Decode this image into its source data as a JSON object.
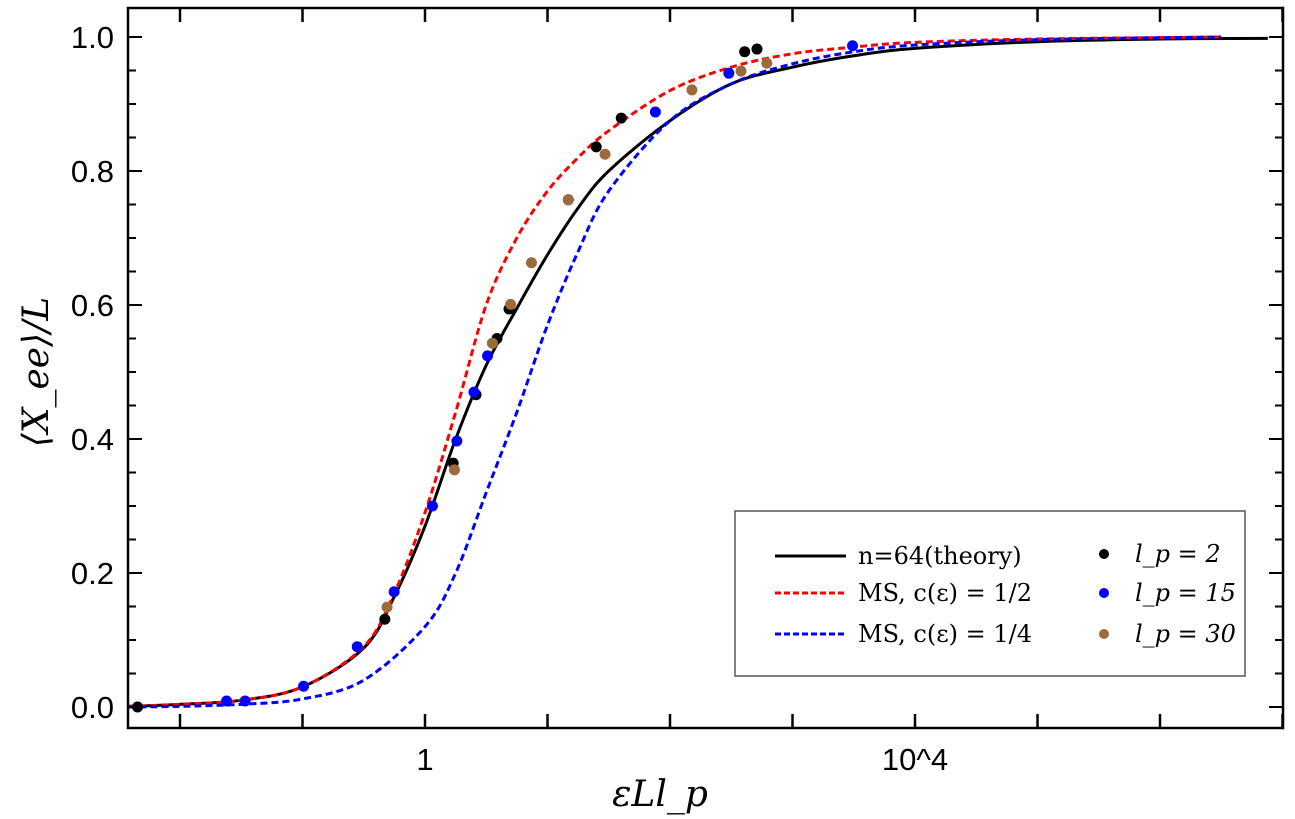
{
  "chart_data": {
    "type": "line",
    "xscale": "log",
    "xlabel": "εLl_p",
    "ylabel": "⟨X_ee⟩/L",
    "xlim": [
      0.0038,
      10000000
    ],
    "ylim": [
      0,
      1.05
    ],
    "x_ticks": [
      {
        "value": 1,
        "label": "1"
      },
      {
        "value": 10000,
        "label": "10^4"
      }
    ],
    "y_ticks": [
      {
        "value": 0,
        "label": "0.0"
      },
      {
        "value": 0.2,
        "label": "0.2"
      },
      {
        "value": 0.4,
        "label": "0.4"
      },
      {
        "value": 0.6,
        "label": "0.6"
      },
      {
        "value": 0.8,
        "label": "0.8"
      },
      {
        "value": 1.0,
        "label": "1.0"
      }
    ],
    "grid": false,
    "legend_position": "bottom-right",
    "lines": [
      {
        "name": "n=64(theory)",
        "color": "#000000",
        "style": "solid",
        "x": [
          0.0038,
          0.01,
          0.0316,
          0.1,
          0.316,
          0.562,
          1,
          1.78,
          3.16,
          5.62,
          10,
          17.8,
          31.6,
          100,
          316,
          1000,
          3162,
          10000,
          100000,
          1000000,
          7600000
        ],
        "y": [
          0.001,
          0.004,
          0.01,
          0.03,
          0.088,
          0.165,
          0.27,
          0.4,
          0.51,
          0.595,
          0.675,
          0.745,
          0.8,
          0.875,
          0.93,
          0.955,
          0.972,
          0.983,
          0.993,
          0.997,
          0.998
        ]
      },
      {
        "name": "MS, c(ε) = 1/2",
        "color": "#ff0000",
        "style": "dashed",
        "x": [
          0.0038,
          0.01,
          0.0316,
          0.1,
          0.316,
          0.562,
          1,
          1.78,
          3.16,
          5.62,
          10,
          17.8,
          31.6,
          100,
          316,
          1000,
          3162,
          10000,
          100000,
          3160000
        ],
        "y": [
          0.001,
          0.004,
          0.01,
          0.03,
          0.09,
          0.17,
          0.29,
          0.44,
          0.6,
          0.7,
          0.77,
          0.82,
          0.86,
          0.92,
          0.955,
          0.975,
          0.985,
          0.992,
          0.997,
          1.0
        ]
      },
      {
        "name": "MS, c(ε) = 1/4",
        "color": "#0000ff",
        "style": "dashed",
        "x": [
          0.0038,
          0.01,
          0.0316,
          0.1,
          0.316,
          1,
          1.78,
          3.16,
          5.62,
          10,
          17.8,
          31.6,
          100,
          316,
          1000,
          3162,
          10000,
          100000,
          3160000
        ],
        "y": [
          0.0,
          0.001,
          0.004,
          0.012,
          0.04,
          0.12,
          0.2,
          0.32,
          0.44,
          0.57,
          0.68,
          0.77,
          0.875,
          0.93,
          0.96,
          0.978,
          0.988,
          0.996,
          1.0
        ]
      }
    ],
    "scatter": [
      {
        "name": "l_p = 2",
        "color": "#000000",
        "x": [
          0.0045,
          0.47,
          1.7,
          2.61,
          3.87,
          4.85,
          25,
          40,
          407,
          513
        ],
        "y": [
          0.0,
          0.131,
          0.364,
          0.466,
          0.55,
          0.594,
          0.836,
          0.879,
          0.978,
          0.982
        ]
      },
      {
        "name": "l_p = 15",
        "color": "#0000ff",
        "x": [
          0.024,
          0.034,
          0.102,
          0.28,
          0.56,
          1.15,
          1.82,
          2.51,
          3.24,
          14.8,
          76,
          302,
          3090
        ],
        "y": [
          0.009,
          0.009,
          0.031,
          0.09,
          0.172,
          0.3,
          0.397,
          0.47,
          0.524,
          0.757,
          0.888,
          0.946,
          0.987
        ]
      },
      {
        "name": "l_p = 30",
        "color": "#9c6b3c",
        "x": [
          0.49,
          1.74,
          3.55,
          5.0,
          7.4,
          14.8,
          29.5,
          151,
          380,
          617
        ],
        "y": [
          0.149,
          0.354,
          0.543,
          0.601,
          0.663,
          0.757,
          0.825,
          0.921,
          0.949,
          0.961
        ]
      }
    ]
  }
}
